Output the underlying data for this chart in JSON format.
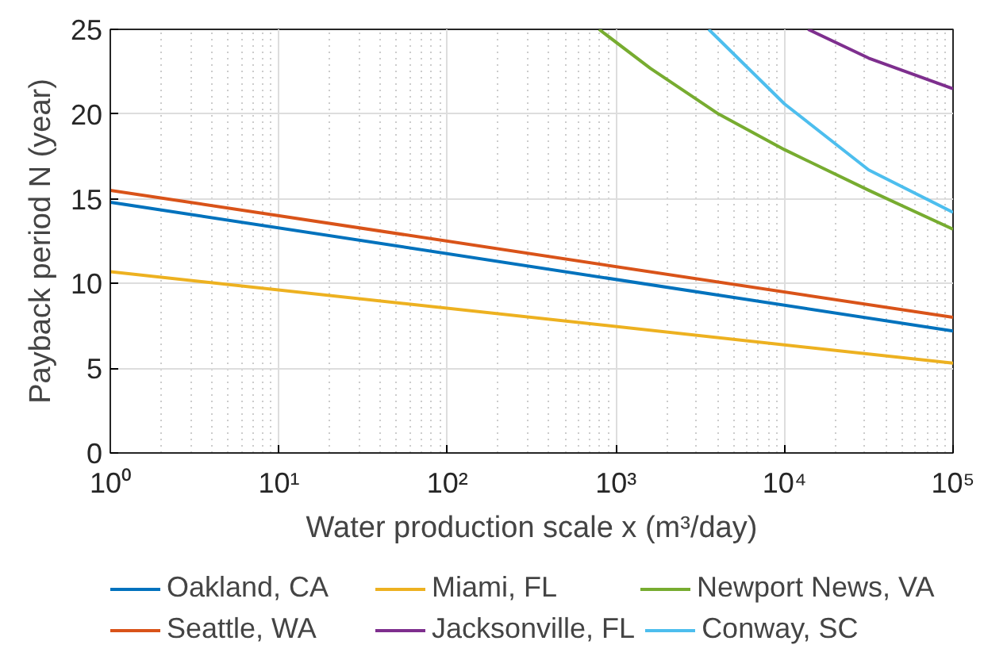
{
  "chart_data": {
    "type": "line",
    "xlabel": "Water production scale x (m³/day)",
    "ylabel": "Payback period N (year)",
    "log": "x",
    "grid": true,
    "legend": "bottom",
    "line_style": "solid",
    "xlim": [
      1,
      100000
    ],
    "ylim": [
      0,
      25
    ],
    "xticks": [
      {
        "value": 1,
        "label": "10⁰"
      },
      {
        "value": 10,
        "label": "10¹"
      },
      {
        "value": 100,
        "label": "10²"
      },
      {
        "value": 1000,
        "label": "10³"
      },
      {
        "value": 10000,
        "label": "10⁴"
      },
      {
        "value": 100000,
        "label": "10⁵"
      }
    ],
    "yticks": [
      0,
      5,
      10,
      15,
      20,
      25
    ],
    "series": [
      {
        "name": "Oakland, CA",
        "color": "#0072bd",
        "x": [
          1,
          100000
        ],
        "values": [
          14.8,
          7.2
        ]
      },
      {
        "name": "Miami, FL",
        "color": "#edb120",
        "x": [
          1,
          100000
        ],
        "values": [
          10.7,
          5.3
        ]
      },
      {
        "name": "Newport News, VA",
        "color": "#77ac30",
        "x": [
          794,
          1600,
          4070,
          10000,
          31600,
          100000
        ],
        "values": [
          25,
          22.7,
          20.0,
          17.9,
          15.5,
          13.2
        ]
      },
      {
        "name": "Seattle, WA",
        "color": "#d95319",
        "x": [
          1,
          100000
        ],
        "values": [
          15.5,
          8.0
        ]
      },
      {
        "name": "Jacksonville, FL",
        "color": "#7e2f8e",
        "x": [
          13800,
          31600,
          100000
        ],
        "values": [
          25,
          23.3,
          21.5
        ]
      },
      {
        "name": "Conway, SC",
        "color": "#4dbeee",
        "x": [
          3550,
          10000,
          31600,
          100000
        ],
        "values": [
          25,
          20.6,
          16.7,
          14.2
        ]
      }
    ]
  }
}
